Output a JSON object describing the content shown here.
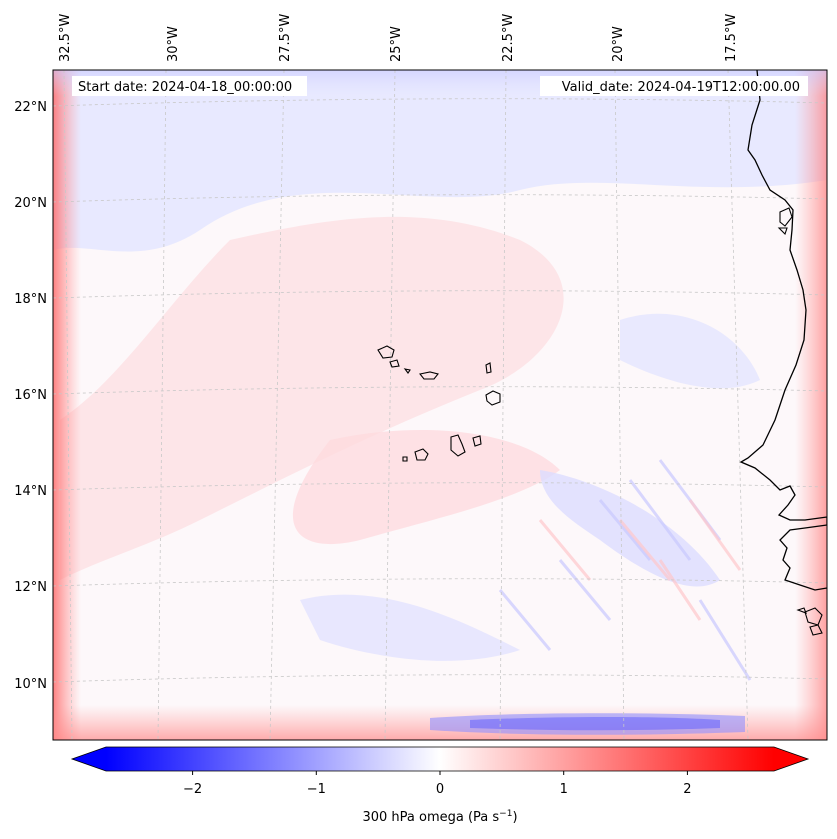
{
  "header": {
    "start_date": "Start date: 2024-04-18_00:00:00",
    "valid_date": "Valid_date: 2024-04-19T12:00:00.00"
  },
  "map": {
    "lon_labels": [
      "32.5°W",
      "30°W",
      "27.5°W",
      "25°W",
      "22.5°W",
      "20°W",
      "17.5°W"
    ],
    "lat_labels": [
      "22°N",
      "20°N",
      "18°N",
      "16°N",
      "14°N",
      "12°N",
      "10°N"
    ],
    "grid": true
  },
  "colorbar": {
    "label": "300 hPa omega (Pa s",
    "label_superscript": "−1",
    "label_close": ")",
    "ticks": [
      "−2",
      "−1",
      "0",
      "1",
      "2"
    ],
    "range": [
      -2.7,
      2.7
    ],
    "color_low": "#0000ff",
    "color_mid": "#ffffff",
    "color_high": "#ff0000",
    "extend": "both"
  },
  "colors": {
    "coastline": "#000000",
    "gridline": "#c8c8c8"
  }
}
